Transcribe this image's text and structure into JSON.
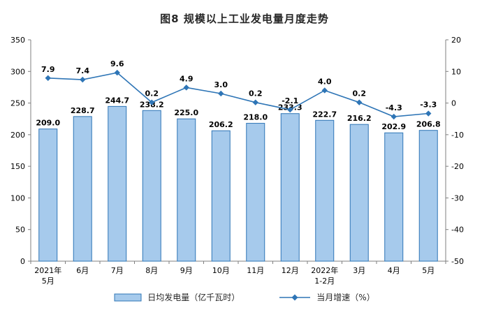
{
  "chart_data": {
    "type": "bar+line",
    "title": "图8 规模以上工业发电量月度走势",
    "categories": [
      "2021年\n5月",
      "6月",
      "7月",
      "8月",
      "9月",
      "10月",
      "11月",
      "12月",
      "2022年\n1-2月",
      "3月",
      "4月",
      "5月"
    ],
    "series": [
      {
        "name": "日均发电量（亿千瓦时）",
        "type": "bar",
        "axis": "left",
        "values": [
          209.0,
          228.7,
          244.7,
          238.2,
          225.0,
          206.2,
          218.0,
          233.3,
          222.7,
          216.2,
          202.9,
          206.8
        ]
      },
      {
        "name": "当月增速（%）",
        "type": "line",
        "axis": "right",
        "values": [
          7.9,
          7.4,
          9.6,
          0.2,
          4.9,
          3.0,
          0.2,
          -2.1,
          4.0,
          0.2,
          -4.3,
          -3.3
        ]
      }
    ],
    "left_axis": {
      "min": 0,
      "max": 350,
      "step": 50,
      "ticks": [
        0,
        50,
        100,
        150,
        200,
        250,
        300,
        350
      ]
    },
    "right_axis": {
      "min": -50,
      "max": 20,
      "step": 10,
      "ticks": [
        -50,
        -40,
        -30,
        -20,
        -10,
        0,
        10,
        20
      ]
    },
    "grid": false,
    "legend_position": "bottom",
    "colors": {
      "bar_fill": "#A6CAEC",
      "bar_stroke": "#2E75B6",
      "line": "#2E75B6",
      "axis": "#7F7F7F",
      "text": "#000000"
    }
  }
}
